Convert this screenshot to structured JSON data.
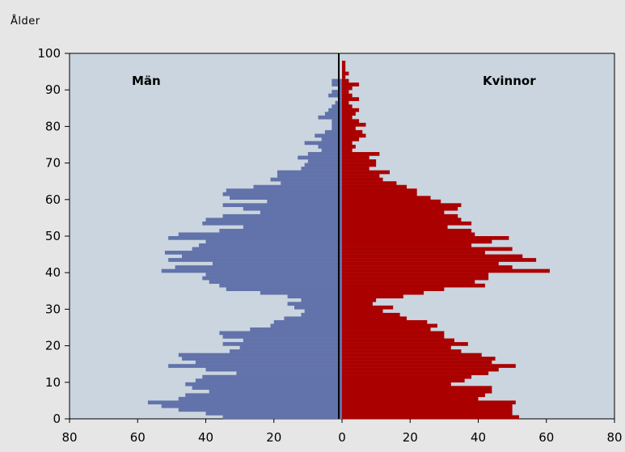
{
  "chart_data": {
    "type": "bar",
    "orientation": "horizontal",
    "title": "",
    "ylabel": "Ålder",
    "xlabel": "",
    "ylim": [
      0,
      100
    ],
    "xlim": [
      -80,
      80
    ],
    "x_ticks": [
      "80",
      "60",
      "40",
      "20",
      "0",
      "20",
      "40",
      "60",
      "80"
    ],
    "y_ticks": [
      "0",
      "10",
      "20",
      "30",
      "40",
      "50",
      "60",
      "70",
      "80",
      "90",
      "100"
    ],
    "grid": false,
    "background_color": "#cad5df",
    "ages": [
      0,
      1,
      2,
      3,
      4,
      5,
      6,
      7,
      8,
      9,
      10,
      11,
      12,
      13,
      14,
      15,
      16,
      17,
      18,
      19,
      20,
      21,
      22,
      23,
      24,
      25,
      26,
      27,
      28,
      29,
      30,
      31,
      32,
      33,
      34,
      35,
      36,
      37,
      38,
      39,
      40,
      41,
      42,
      43,
      44,
      45,
      46,
      47,
      48,
      49,
      50,
      51,
      52,
      53,
      54,
      55,
      56,
      57,
      58,
      59,
      60,
      61,
      62,
      63,
      64,
      65,
      66,
      67,
      68,
      69,
      70,
      71,
      72,
      73,
      74,
      75,
      76,
      77,
      78,
      79,
      80,
      81,
      82,
      83,
      84,
      85,
      86,
      87,
      88,
      89,
      90,
      91,
      92,
      93,
      94,
      95,
      96,
      97
    ],
    "series": [
      {
        "name": "Män",
        "side": "left",
        "color": "#6272aa",
        "values": [
          35,
          40,
          48,
          53,
          57,
          48,
          46,
          39,
          44,
          46,
          43,
          41,
          31,
          40,
          51,
          43,
          47,
          48,
          33,
          30,
          35,
          29,
          35,
          36,
          27,
          21,
          20,
          17,
          12,
          11,
          14,
          16,
          12,
          16,
          24,
          34,
          36,
          39,
          41,
          40,
          53,
          49,
          38,
          51,
          47,
          52,
          44,
          42,
          40,
          51,
          48,
          36,
          29,
          41,
          40,
          35,
          24,
          29,
          35,
          22,
          33,
          35,
          34,
          26,
          18,
          21,
          19,
          19,
          12,
          11,
          10,
          13,
          10,
          6,
          7,
          11,
          6,
          8,
          5,
          3,
          3,
          3,
          7,
          5,
          4,
          3,
          2,
          1,
          4,
          3,
          1,
          3,
          3,
          0,
          0,
          0,
          0,
          0
        ]
      },
      {
        "name": "Kvinnor",
        "side": "right",
        "color": "#aa0000",
        "values": [
          52,
          50,
          50,
          50,
          51,
          40,
          42,
          44,
          44,
          32,
          36,
          38,
          43,
          46,
          51,
          44,
          45,
          41,
          35,
          32,
          37,
          33,
          30,
          30,
          26,
          28,
          25,
          19,
          17,
          12,
          15,
          9,
          10,
          18,
          24,
          30,
          42,
          39,
          43,
          43,
          61,
          50,
          46,
          57,
          53,
          42,
          50,
          38,
          44,
          49,
          39,
          38,
          31,
          38,
          35,
          34,
          30,
          34,
          35,
          29,
          26,
          22,
          22,
          19,
          16,
          12,
          11,
          14,
          8,
          10,
          10,
          8,
          11,
          3,
          4,
          3,
          5,
          7,
          6,
          4,
          7,
          5,
          3,
          4,
          5,
          3,
          2,
          5,
          3,
          2,
          3,
          5,
          2,
          1,
          2,
          1,
          1,
          1
        ]
      }
    ]
  }
}
